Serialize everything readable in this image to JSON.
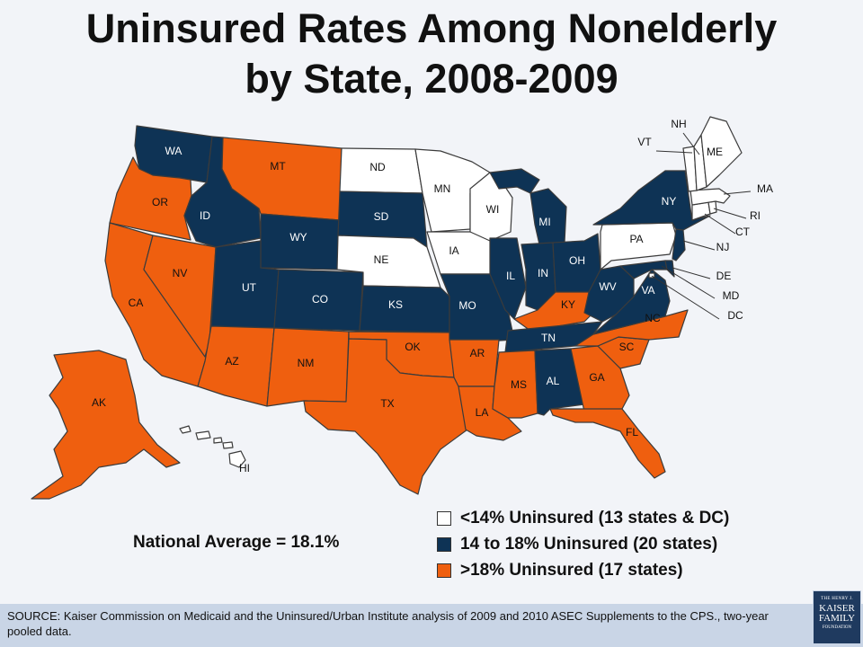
{
  "title": {
    "line1": "Uninsured Rates Among Nonelderly",
    "line2": "by State, 2008-2009"
  },
  "national_average": "National Average = 18.1%",
  "colors": {
    "low": "#ffffff",
    "mid": "#0e3355",
    "high": "#ef5f0f",
    "outline": "#3b3b3b"
  },
  "legend": [
    {
      "category": "low",
      "label": "<14% Uninsured (13 states & DC)"
    },
    {
      "category": "mid",
      "label": "14 to 18% Uninsured (20 states)"
    },
    {
      "category": "high",
      "label": ">18% Uninsured (17 states)"
    }
  ],
  "states": {
    "WA": "mid",
    "OR": "high",
    "CA": "high",
    "NV": "high",
    "ID": "mid",
    "MT": "high",
    "WY": "mid",
    "UT": "mid",
    "AZ": "high",
    "CO": "mid",
    "NM": "high",
    "ND": "low",
    "SD": "mid",
    "NE": "low",
    "KS": "mid",
    "OK": "high",
    "TX": "high",
    "MN": "low",
    "IA": "low",
    "MO": "mid",
    "AR": "high",
    "LA": "high",
    "WI": "low",
    "IL": "mid",
    "MI": "mid",
    "IN": "mid",
    "OH": "mid",
    "KY": "high",
    "TN": "mid",
    "MS": "high",
    "AL": "mid",
    "GA": "high",
    "FL": "high",
    "SC": "high",
    "NC": "high",
    "VA": "mid",
    "WV": "mid",
    "PA": "low",
    "NY": "mid",
    "NJ": "mid",
    "DE": "mid",
    "MD": "mid",
    "DC": "low",
    "CT": "low",
    "RI": "low",
    "MA": "low",
    "VT": "low",
    "NH": "low",
    "ME": "low",
    "AK": "high",
    "HI": "low"
  },
  "footer": {
    "source": "SOURCE: Kaiser Commission on Medicaid and the Uninsured/Urban Institute analysis of 2009 and 2010 ASEC Supplements to the CPS., two-year pooled data.",
    "logo_line1": "THE HENRY J.",
    "logo_line2": "KAISER FAMILY",
    "logo_line3": "FOUNDATION"
  }
}
